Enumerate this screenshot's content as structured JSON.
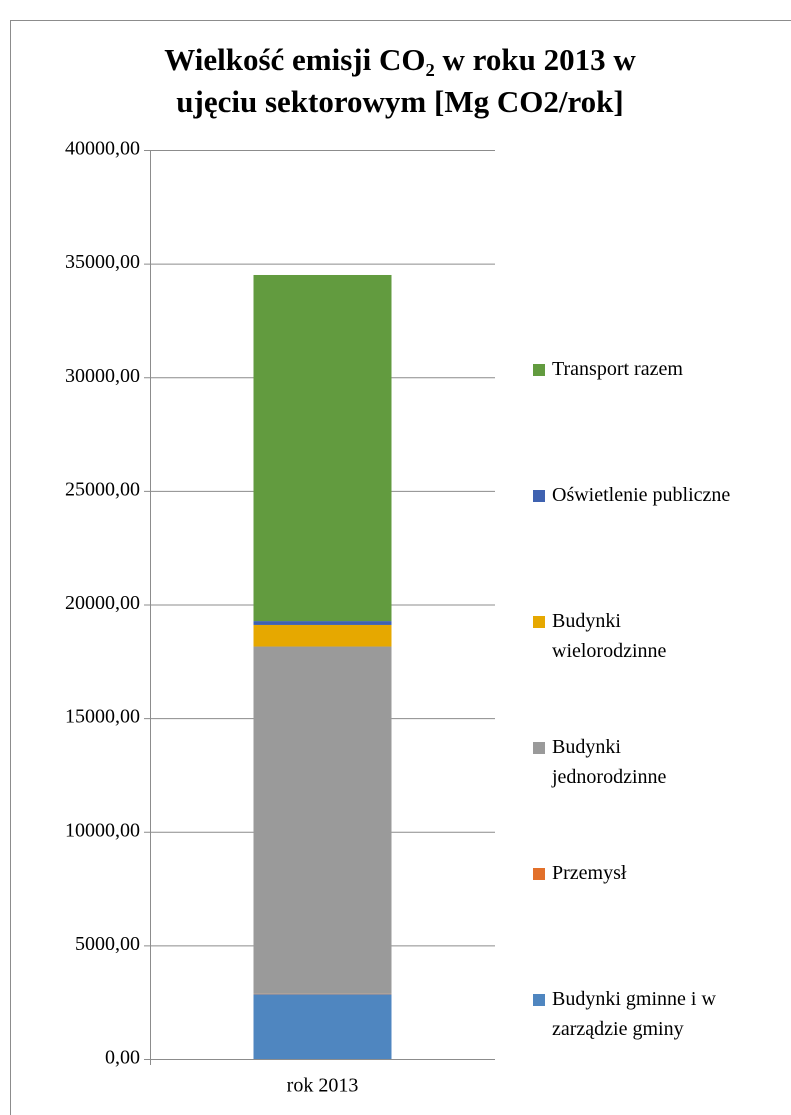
{
  "chart_data": {
    "type": "stacked_bar",
    "title": "Wielkość emisji CO₂ w roku 2013 w ujęciu sektorowym [Mg CO2/rok]",
    "categories": [
      "rok 2013"
    ],
    "series": [
      {
        "name": "Budynki gminne i w zarządzie gminy",
        "color": "#4f86c0",
        "values": [
          2850
        ]
      },
      {
        "name": "Przemysł",
        "color": "#e2702a",
        "values": [
          20
        ]
      },
      {
        "name": "Budynki jednorodzinne",
        "color": "#9a9a9a",
        "values": [
          15280
        ]
      },
      {
        "name": "Budynki wielorodzinne",
        "color": "#e6a800",
        "values": [
          950
        ]
      },
      {
        "name": "Oświetlenie publiczne",
        "color": "#3f62b0",
        "values": [
          170
        ]
      },
      {
        "name": "Transport razem",
        "color": "#629b3f",
        "values": [
          15230
        ]
      }
    ],
    "ylim": [
      0,
      40000
    ],
    "yticks": [
      {
        "value": 0,
        "label": "0,00"
      },
      {
        "value": 5000,
        "label": "5000,00"
      },
      {
        "value": 10000,
        "label": "10000,00"
      },
      {
        "value": 15000,
        "label": "15000,00"
      },
      {
        "value": 20000,
        "label": "20000,00"
      },
      {
        "value": 25000,
        "label": "25000,00"
      },
      {
        "value": 30000,
        "label": "30000,00"
      },
      {
        "value": 35000,
        "label": "35000,00"
      },
      {
        "value": 40000,
        "label": "40000,00"
      }
    ],
    "grid": true,
    "legend": "right"
  }
}
